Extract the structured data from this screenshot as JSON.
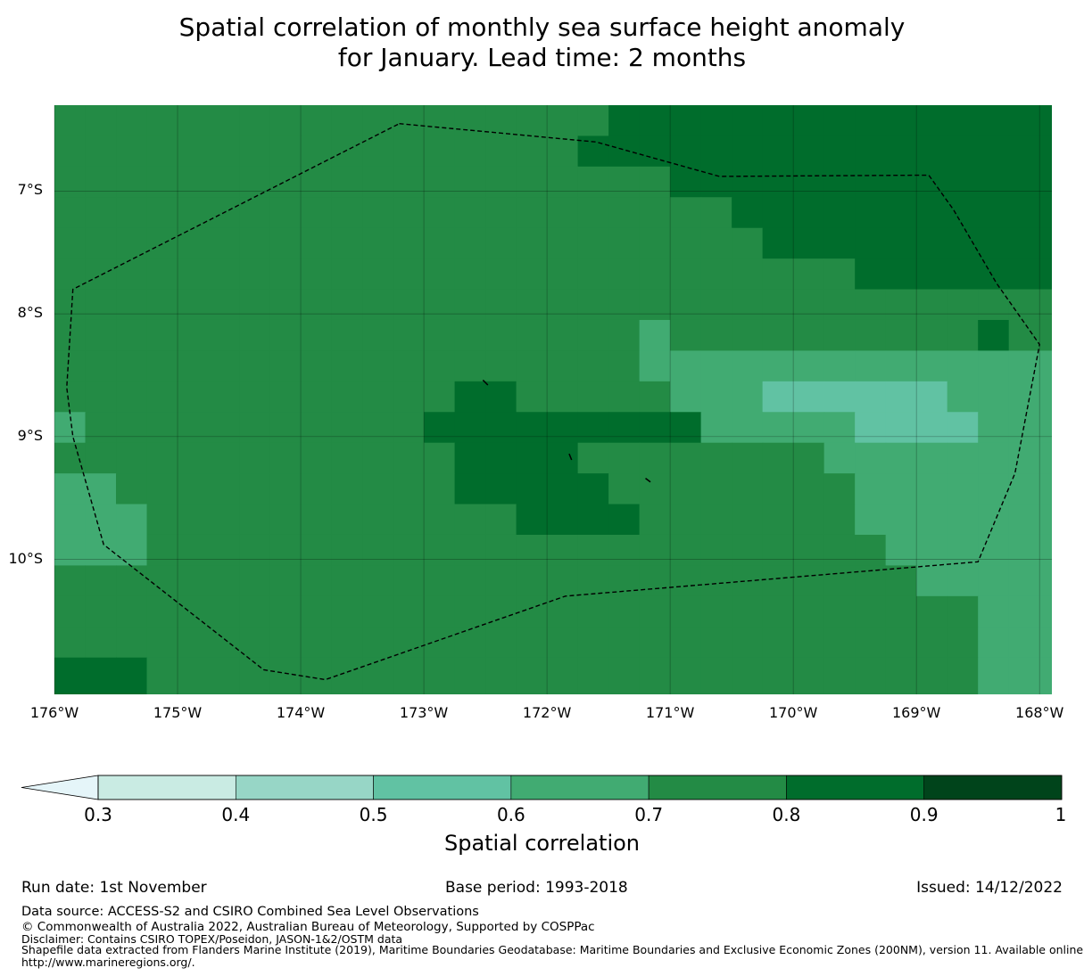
{
  "title_line1": "Spatial correlation of monthly sea surface height anomaly",
  "title_line2": "for January. Lead time: 2 months",
  "map": {
    "lat_range": [
      -11.1,
      -6.3
    ],
    "lon_range": [
      -176,
      -167.9
    ],
    "lat_ticks": [
      -7,
      -8,
      -9,
      -10
    ],
    "lat_labels": [
      "7°S",
      "8°S",
      "9°S",
      "10°S"
    ],
    "lon_ticks": [
      -176,
      -175,
      -174,
      -173,
      -172,
      -171,
      -170,
      -169,
      -168
    ],
    "lon_labels": [
      "176°W",
      "175°W",
      "174°W",
      "173°W",
      "172°W",
      "171°W",
      "170°W",
      "169°W",
      "168°W"
    ],
    "grid": true,
    "boundary": "Exclusive Economic Zone (200NM), dashed",
    "correlation_grid": {
      "lon_west_edges": [
        -176,
        -175.75,
        -175.5,
        -175.25,
        -175,
        -174.75,
        -174.5,
        -174.25,
        -174,
        -173.75,
        -173.5,
        -173.25,
        -173,
        -172.75,
        -172.5,
        -172.25,
        -172,
        -171.75,
        -171.5,
        -171.25,
        -171,
        -170.75,
        -170.5,
        -170.25,
        -170,
        -169.75,
        -169.5,
        -169.25,
        -169,
        -168.75,
        -168.5,
        -168.25,
        -168
      ],
      "lat_north_edges": [
        -6.3,
        -6.55,
        -6.8,
        -7.05,
        -7.3,
        -7.55,
        -7.8,
        -8.05,
        -8.3,
        -8.55,
        -8.8,
        -9.05,
        -9.3,
        -9.55,
        -9.8,
        -10.05,
        -10.3,
        -10.55,
        -10.8
      ],
      "class_index": [
        "444444444444444444555555555555555",
        "444444444444444445555555555555555",
        "444444444444444444445555555555555",
        "444444444444444444444455555555555",
        "444444444444444444444445555555555",
        "444444444444444444444444445555555",
        "444444444444444444444444444444444",
        "444444444444444444434444444444544",
        "444444444444444444433333333333333",
        "444444444444455444443332222223333",
        "344444444444555555555333332222333",
        "444444444444455554444444433333333",
        "334444444444455555444444443333333",
        "333444444444444555544444443333333",
        "333444444444444444444444444333333",
        "444444444444444444444444444433333",
        "444444444444444444444444444444333",
        "444444444444444444444444444444333",
        "555444444444444444444444444444333"
      ]
    }
  },
  "colorbar": {
    "bounds": [
      0.3,
      0.4,
      0.5,
      0.6,
      0.7,
      0.8,
      0.9,
      1
    ],
    "tick_labels": [
      "0.3",
      "0.4",
      "0.5",
      "0.6",
      "0.7",
      "0.8",
      "0.9",
      "1"
    ],
    "colors": [
      "#c9ebe3",
      "#97d6c6",
      "#61c2a3",
      "#41ab72",
      "#238b45",
      "#006d2c",
      "#00441b"
    ],
    "under_color": "#e5f5f9",
    "label": "Spatial correlation"
  },
  "footer": {
    "run_date": "Run date: 1st November",
    "base_period": "Base period: 1993-2018",
    "issued": "Issued: 14/12/2022",
    "data_source": "Data source: ACCESS-S2 and CSIRO Combined Sea Level Observations",
    "copyright": "© Commonwealth of Australia 2022, Australian Bureau of Meteorology, Supported by COSPPac",
    "disclaimer": "Disclaimer: Contains CSIRO TOPEX/Poseidon, JASON-1&2/OSTM data",
    "shapefile_line1": "Shapefile data extracted from Flanders Marine Institute (2019), Maritime Boundaries Geodatabase: Maritime Boundaries and Exclusive Economic Zones (200NM), version 11. Available online at",
    "shapefile_line2": "http://www.marineregions.org/."
  }
}
